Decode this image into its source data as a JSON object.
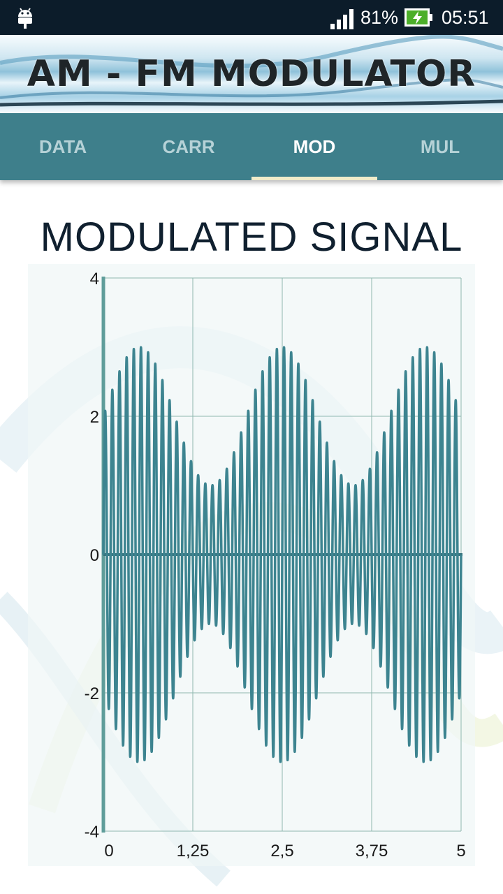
{
  "status_bar": {
    "battery_percent": "81%",
    "time": "05:51",
    "icons": [
      "android-debug-icon",
      "signal-icon",
      "battery-charging-icon"
    ]
  },
  "banner": {
    "title": "AM - FM MODULATOR"
  },
  "tabs": [
    {
      "label": "DATA",
      "active": false
    },
    {
      "label": "CARR",
      "active": false
    },
    {
      "label": "MOD",
      "active": true
    },
    {
      "label": "MUL",
      "active": false
    }
  ],
  "colors": {
    "accent": "#3e7f8b",
    "signal": "#3d8490",
    "tab_indicator": "#f1ecc9"
  },
  "chart_data": {
    "type": "line",
    "title": "MODULATED SIGNAL",
    "xlabel": "",
    "ylabel": "",
    "xlim": [
      0,
      5
    ],
    "ylim": [
      -4,
      4
    ],
    "x_ticks": [
      "0",
      "1,25",
      "2,5",
      "3,75",
      "5"
    ],
    "y_ticks": [
      "4",
      "2",
      "0",
      "-2",
      "-4"
    ],
    "grid": true,
    "series": [
      {
        "formula": "(2 + sin(2*pi*0.5*t)) * sin(2*pi*10*t)",
        "carrier_amplitude": 2,
        "message_amplitude": 1,
        "message_frequency": 0.5,
        "carrier_frequency": 10,
        "envelope_max": 3,
        "envelope_min": 1
      }
    ]
  }
}
